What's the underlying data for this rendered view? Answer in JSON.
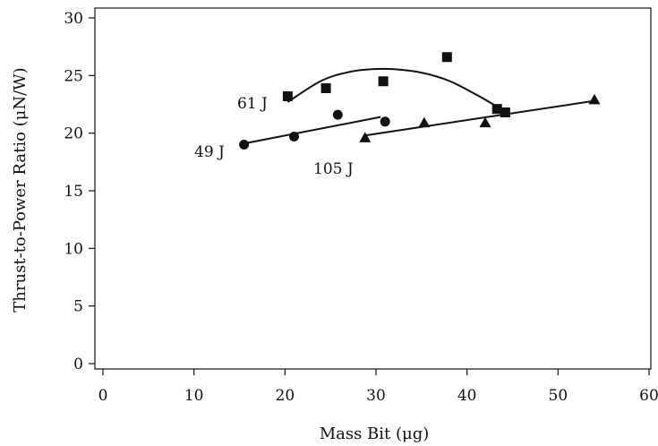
{
  "chart_data": {
    "type": "scatter",
    "title": "",
    "xlabel": "Mass Bit (μg)",
    "ylabel": "Thrust-to-Power Ratio (μN/W)",
    "xlim": [
      0,
      60
    ],
    "ylim": [
      0,
      30
    ],
    "x_ticks": [
      0,
      10,
      20,
      30,
      40,
      50,
      60
    ],
    "y_ticks": [
      0,
      5,
      10,
      15,
      20,
      25,
      30
    ],
    "grid": false,
    "legend": "none",
    "series": [
      {
        "label": "49 J",
        "marker": "circle",
        "points": [
          [
            15.5,
            19.0
          ],
          [
            21.0,
            19.7
          ],
          [
            25.8,
            21.6
          ],
          [
            31.0,
            21.0
          ]
        ],
        "fit": "linear",
        "fit_line": [
          [
            15.5,
            19.1
          ],
          [
            30.5,
            21.4
          ]
        ]
      },
      {
        "label": "61 J",
        "marker": "square",
        "points": [
          [
            20.3,
            23.2
          ],
          [
            24.5,
            23.9
          ],
          [
            30.8,
            24.5
          ],
          [
            37.8,
            26.6
          ],
          [
            43.3,
            22.1
          ],
          [
            44.2,
            21.8
          ]
        ],
        "fit": "quadratic",
        "fit_line": [
          [
            20.3,
            22.7
          ],
          [
            24.0,
            24.55
          ],
          [
            27.0,
            25.3
          ],
          [
            29.5,
            25.55
          ],
          [
            32.0,
            25.55
          ],
          [
            35.0,
            25.25
          ],
          [
            38.0,
            24.55
          ],
          [
            41.0,
            23.35
          ],
          [
            43.3,
            22.3
          ]
        ]
      },
      {
        "label": "105 J",
        "marker": "triangle",
        "points": [
          [
            28.8,
            19.6
          ],
          [
            35.3,
            20.9
          ],
          [
            42.0,
            20.9
          ],
          [
            54.0,
            22.9
          ]
        ],
        "fit": "linear",
        "fit_line": [
          [
            28.8,
            19.8
          ],
          [
            54.0,
            22.8
          ]
        ]
      }
    ]
  }
}
